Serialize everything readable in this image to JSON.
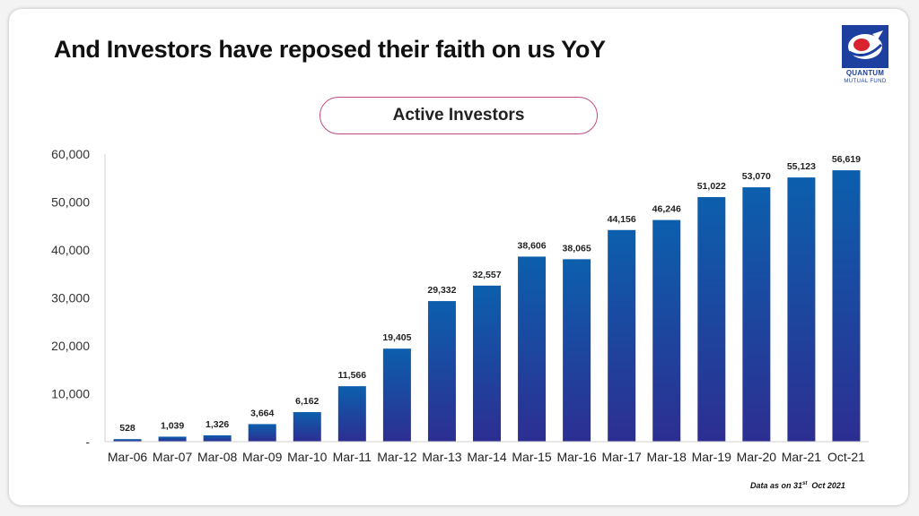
{
  "title": "And Investors have reposed their faith on us YoY",
  "logo": {
    "name": "QUANTUM",
    "sub": "MUTUAL FUND",
    "color": "#1d3fa0"
  },
  "chart_title": "Active Investors",
  "note": {
    "prefix": "Data as on 31",
    "sup": "st",
    "suffix": "Oct 2021"
  },
  "chart_data": {
    "type": "bar",
    "title": "Active Investors",
    "categories": [
      "Mar-06",
      "Mar-07",
      "Mar-08",
      "Mar-09",
      "Mar-10",
      "Mar-11",
      "Mar-12",
      "Mar-13",
      "Mar-14",
      "Mar-15",
      "Mar-16",
      "Mar-17",
      "Mar-18",
      "Mar-19",
      "Mar-20",
      "Mar-21",
      "Oct-21"
    ],
    "values": [
      528,
      1039,
      1326,
      3664,
      6162,
      11566,
      19405,
      29332,
      32557,
      38606,
      38065,
      44156,
      46246,
      51022,
      53070,
      55123,
      56619
    ],
    "value_labels": [
      "528",
      "1,039",
      "1,326",
      "3,664",
      "6,162",
      "11,566",
      "19,405",
      "29,332",
      "32,557",
      "38,606",
      "38,065",
      "44,156",
      "46,246",
      "51,022",
      "53,070",
      "55,123",
      "56,619"
    ],
    "ylim": [
      0,
      60000
    ],
    "yticks": [
      0,
      10000,
      20000,
      30000,
      40000,
      50000,
      60000
    ],
    "ytick_labels": [
      "-",
      "10,000",
      "20,000",
      "30,000",
      "40,000",
      "50,000",
      "60,000"
    ],
    "xlabel": "",
    "ylabel": "",
    "grid": false,
    "colors": {
      "bar_top": "#0c5fad",
      "bar_bottom": "#2d2e91"
    }
  }
}
